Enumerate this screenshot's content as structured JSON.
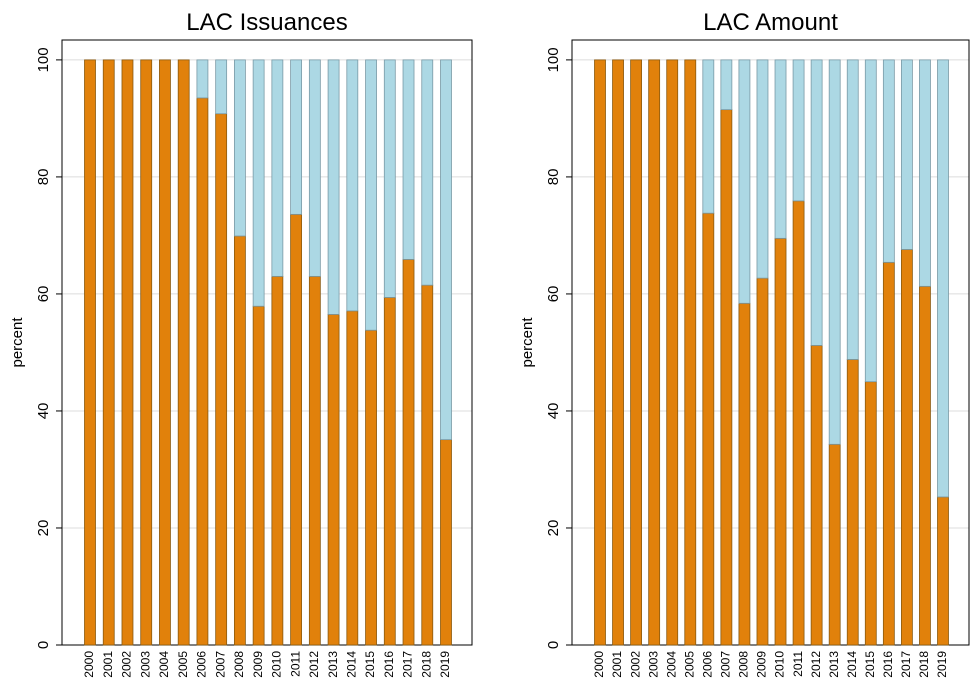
{
  "chart_data": [
    {
      "type": "stacked-bar",
      "title": "LAC Issuances",
      "y_label": "percent",
      "categories": [
        "2000",
        "2001",
        "2002",
        "2003",
        "2004",
        "2005",
        "2006",
        "2007",
        "2008",
        "2009",
        "2010",
        "2011",
        "2012",
        "2013",
        "2014",
        "2015",
        "2016",
        "2017",
        "2018",
        "2019"
      ],
      "series": [
        {
          "color": "#e1810b",
          "values": [
            100,
            100,
            100,
            100,
            100,
            100,
            93.5,
            90.8,
            69.9,
            57.9,
            63,
            73.6,
            63,
            56.5,
            57.1,
            53.8,
            59.4,
            65.9,
            61.5,
            35.1
          ]
        },
        {
          "color": "#acd8e4",
          "values": [
            0,
            0,
            0,
            0,
            0,
            0,
            6.5,
            9.2,
            30.1,
            42.1,
            37,
            26.4,
            37,
            43.5,
            42.9,
            46.2,
            40.6,
            34.1,
            38.5,
            64.9
          ]
        }
      ],
      "ylim": [
        0,
        103.4
      ],
      "yticks": [
        0,
        20,
        40,
        60,
        80,
        100
      ],
      "grid": true
    },
    {
      "type": "stacked-bar",
      "title": "LAC Amount",
      "y_label": "percent",
      "categories": [
        "2000",
        "2001",
        "2002",
        "2003",
        "2004",
        "2005",
        "2006",
        "2007",
        "2008",
        "2009",
        "2010",
        "2011",
        "2012",
        "2013",
        "2014",
        "2015",
        "2016",
        "2017",
        "2018",
        "2019"
      ],
      "series": [
        {
          "color": "#e1810b",
          "values": [
            100,
            100,
            100,
            100,
            100,
            100,
            73.8,
            91.5,
            58.4,
            62.7,
            69.5,
            75.9,
            51.2,
            34.3,
            48.8,
            45,
            65.4,
            67.6,
            61.3,
            25.3
          ]
        },
        {
          "color": "#acd8e4",
          "values": [
            0,
            0,
            0,
            0,
            0,
            0,
            26.2,
            8.5,
            41.6,
            37.3,
            30.5,
            24.1,
            48.8,
            65.7,
            51.2,
            55,
            34.6,
            32.4,
            38.7,
            74.7
          ]
        }
      ],
      "ylim": [
        0,
        103.4
      ],
      "yticks": [
        0,
        20,
        40,
        60,
        80,
        100
      ],
      "grid": true
    }
  ]
}
